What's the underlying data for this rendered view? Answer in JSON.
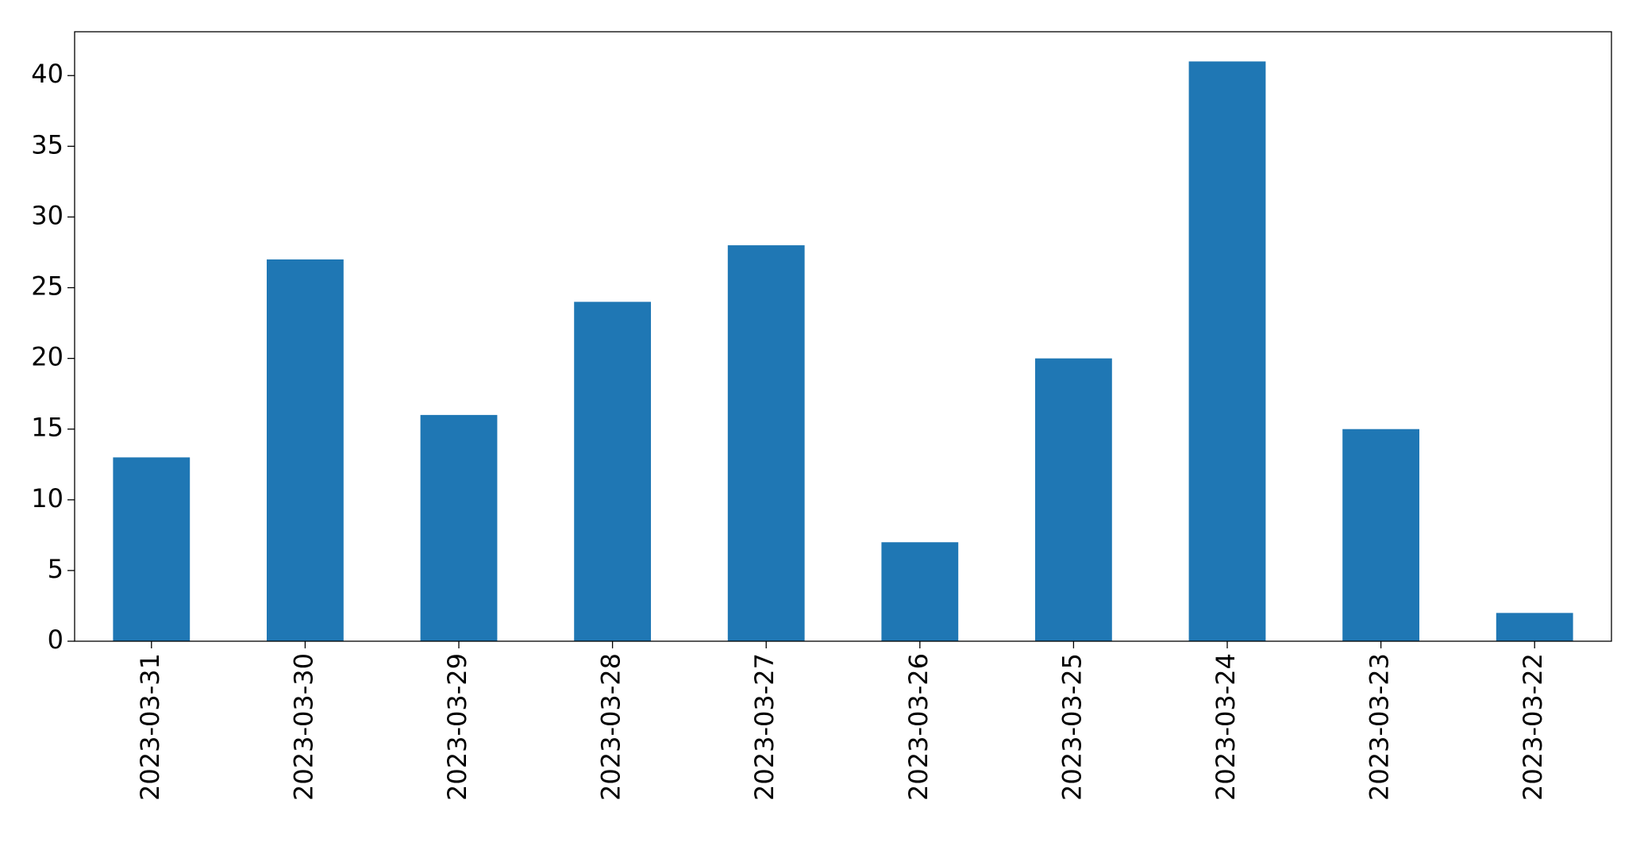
{
  "chart_data": {
    "type": "bar",
    "categories": [
      "2023-03-31",
      "2023-03-30",
      "2023-03-29",
      "2023-03-28",
      "2023-03-27",
      "2023-03-26",
      "2023-03-25",
      "2023-03-24",
      "2023-03-23",
      "2023-03-22"
    ],
    "values": [
      13,
      27,
      16,
      24,
      28,
      7,
      20,
      41,
      15,
      2
    ],
    "color": "#1f77b4",
    "ylim": [
      0,
      43.1
    ],
    "yticks": [
      0,
      5,
      10,
      15,
      20,
      25,
      30,
      35,
      40
    ],
    "grid": false
  }
}
